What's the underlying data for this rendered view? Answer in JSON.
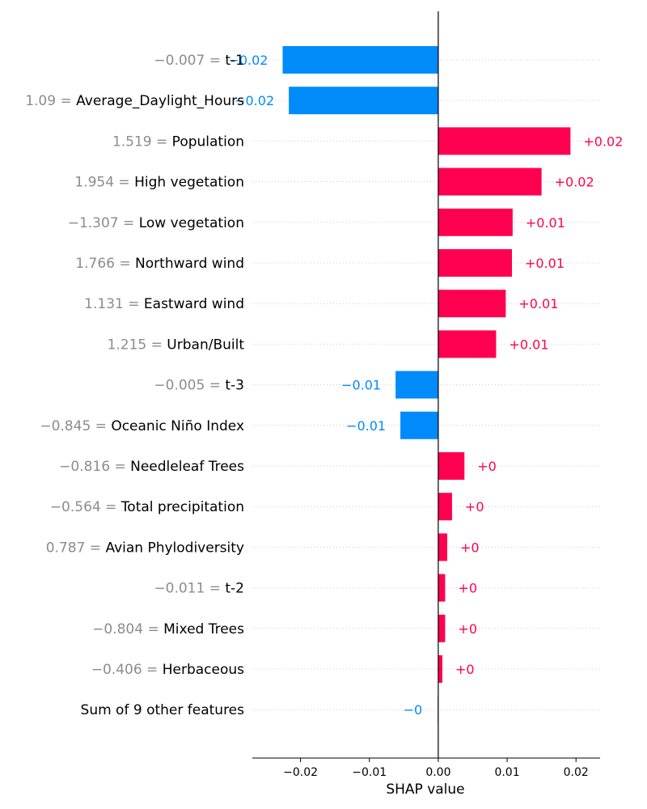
{
  "chart_data": {
    "type": "bar",
    "orientation": "horizontal",
    "title": "",
    "xlabel": "SHAP value",
    "ylabel": "",
    "xlim": [
      -0.027,
      0.0235
    ],
    "xticks": [
      -0.02,
      -0.01,
      0.0,
      0.01,
      0.02
    ],
    "xtick_labels": [
      "−0.02",
      "−0.01",
      "0.00",
      "0.01",
      "0.02"
    ],
    "grid": "dotted horizontal guide lines per row",
    "colors": {
      "positive": "#ff0051",
      "negative": "#008bfb",
      "other": "#d9dcf5",
      "feature_value_text": "#8c8c8c",
      "axis": "#000000"
    },
    "rows": [
      {
        "feature_value": "−0.007",
        "feature": "t-1",
        "value": -0.0226,
        "label": "−0.02"
      },
      {
        "feature_value": "1.09",
        "feature": "Average_Daylight_Hours",
        "value": -0.0217,
        "label": "−0.02"
      },
      {
        "feature_value": "1.519",
        "feature": "Population",
        "value": 0.0192,
        "label": "+0.02"
      },
      {
        "feature_value": "1.954",
        "feature": "High vegetation",
        "value": 0.015,
        "label": "+0.02"
      },
      {
        "feature_value": "−1.307",
        "feature": "Low vegetation",
        "value": 0.0108,
        "label": "+0.01"
      },
      {
        "feature_value": "1.766",
        "feature": "Northward wind",
        "value": 0.0107,
        "label": "+0.01"
      },
      {
        "feature_value": "1.131",
        "feature": "Eastward wind",
        "value": 0.0098,
        "label": "+0.01"
      },
      {
        "feature_value": "1.215",
        "feature": "Urban/Built",
        "value": 0.0084,
        "label": "+0.01"
      },
      {
        "feature_value": "−0.005",
        "feature": "t-3",
        "value": -0.0062,
        "label": "−0.01"
      },
      {
        "feature_value": "−0.845",
        "feature": "Oceanic Niño Index",
        "value": -0.0055,
        "label": "−0.01"
      },
      {
        "feature_value": "−0.816",
        "feature": "Needleleaf Trees",
        "value": 0.0038,
        "label": "+0"
      },
      {
        "feature_value": "−0.564",
        "feature": "Total precipitation",
        "value": 0.002,
        "label": "+0"
      },
      {
        "feature_value": "0.787",
        "feature": "Avian Phylodiversity",
        "value": 0.0013,
        "label": "+0"
      },
      {
        "feature_value": "−0.011",
        "feature": "t-2",
        "value": 0.001,
        "label": "+0"
      },
      {
        "feature_value": "−0.804",
        "feature": "Mixed Trees",
        "value": 0.001,
        "label": "+0"
      },
      {
        "feature_value": "−0.406",
        "feature": "Herbaceous",
        "value": 0.0006,
        "label": "+0"
      },
      {
        "feature_value": "",
        "feature": "Sum of 9 other features",
        "value": -0.0002,
        "label": "−0"
      }
    ]
  }
}
